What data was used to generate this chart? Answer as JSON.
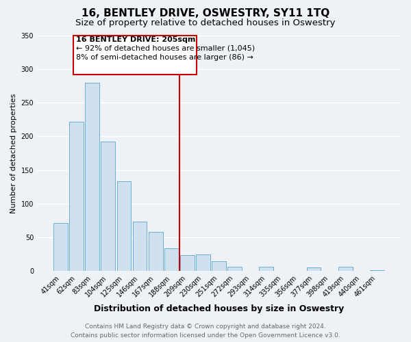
{
  "title": "16, BENTLEY DRIVE, OSWESTRY, SY11 1TQ",
  "subtitle": "Size of property relative to detached houses in Oswestry",
  "xlabel": "Distribution of detached houses by size in Oswestry",
  "ylabel": "Number of detached properties",
  "categories": [
    "41sqm",
    "62sqm",
    "83sqm",
    "104sqm",
    "125sqm",
    "146sqm",
    "167sqm",
    "188sqm",
    "209sqm",
    "230sqm",
    "251sqm",
    "272sqm",
    "293sqm",
    "314sqm",
    "335sqm",
    "356sqm",
    "377sqm",
    "398sqm",
    "419sqm",
    "440sqm",
    "461sqm"
  ],
  "values": [
    71,
    222,
    279,
    192,
    133,
    73,
    58,
    34,
    24,
    25,
    15,
    6,
    0,
    6,
    0,
    0,
    5,
    0,
    6,
    0,
    1
  ],
  "bar_color": "#cfe0ee",
  "bar_edge_color": "#6aaed6",
  "vline_x_index": 8,
  "vline_color": "#cc0000",
  "ylim": [
    0,
    350
  ],
  "yticks": [
    0,
    50,
    100,
    150,
    200,
    250,
    300,
    350
  ],
  "annotation_title": "16 BENTLEY DRIVE: 205sqm",
  "annotation_line1": "← 92% of detached houses are smaller (1,045)",
  "annotation_line2": "8% of semi-detached houses are larger (86) →",
  "annotation_box_color": "#ffffff",
  "annotation_box_edge": "#cc0000",
  "footer_line1": "Contains HM Land Registry data © Crown copyright and database right 2024.",
  "footer_line2": "Contains public sector information licensed under the Open Government Licence v3.0.",
  "background_color": "#eef2f7",
  "grid_color": "#ffffff",
  "title_fontsize": 11,
  "subtitle_fontsize": 9.5,
  "ylabel_fontsize": 8,
  "xlabel_fontsize": 9,
  "tick_fontsize": 7,
  "footer_fontsize": 6.5
}
